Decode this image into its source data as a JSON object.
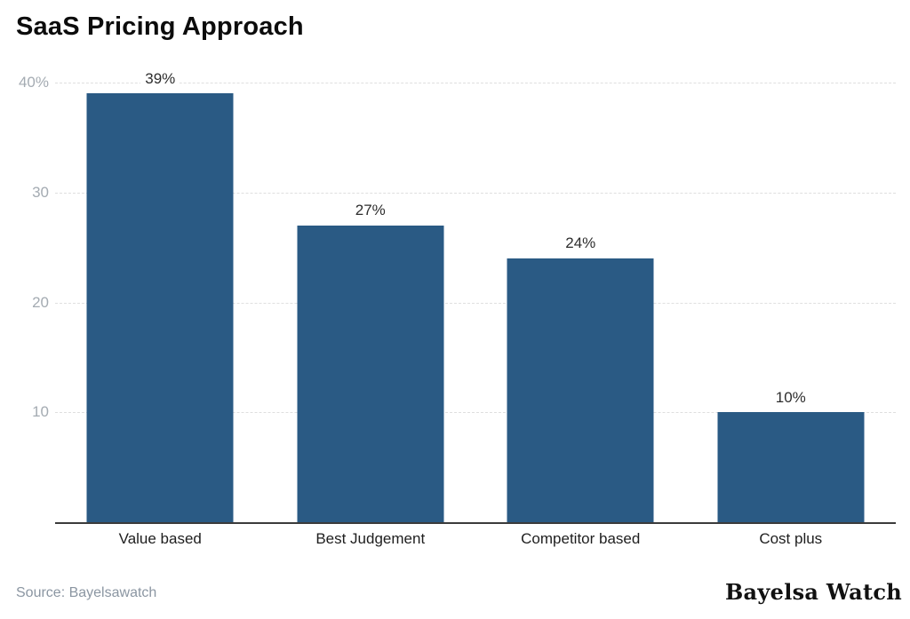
{
  "chart_data": {
    "type": "bar",
    "title": "SaaS Pricing Approach",
    "categories": [
      "Value based",
      "Best Judgement",
      "Competitor based",
      "Cost plus"
    ],
    "values": [
      39,
      27,
      24,
      10
    ],
    "value_labels": [
      "39%",
      "27%",
      "24%",
      "10%"
    ],
    "xlabel": "",
    "ylabel": "",
    "ylim": [
      0,
      40
    ],
    "yticks": [
      {
        "value": 40,
        "label": "40%"
      },
      {
        "value": 30,
        "label": "30"
      },
      {
        "value": 20,
        "label": "20"
      },
      {
        "value": 10,
        "label": "10"
      }
    ],
    "grid": true,
    "legend": "none",
    "bar_color": "#2a5a84",
    "gridline_color": "#dfdfdf",
    "axis_line_color": "#3b3b3b",
    "tick_label_color": "#a4abb2"
  },
  "footer": {
    "source": "Source: Bayelsawatch",
    "brand": "Bayelsa Watch"
  }
}
